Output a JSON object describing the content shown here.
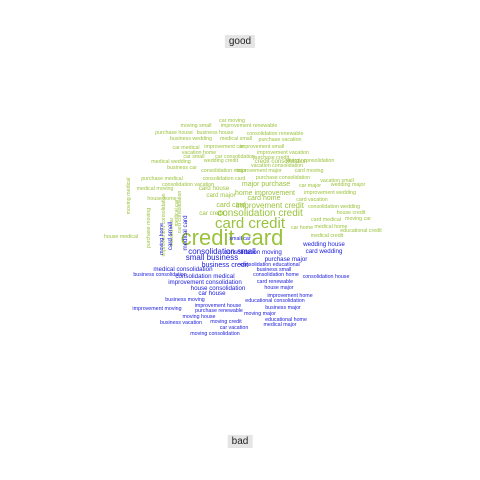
{
  "chart_data": {
    "type": "comparison-wordcloud",
    "groups": [
      "good",
      "bad"
    ],
    "colors": {
      "good": "#9ac23c",
      "bad": "#1a1adb"
    },
    "words": [
      {
        "text": "credit card",
        "group": "good",
        "weight": 22
      },
      {
        "text": "card credit",
        "group": "good",
        "weight": 14
      },
      {
        "text": "consolidation credit",
        "group": "good",
        "weight": 10
      },
      {
        "text": "improvement credit",
        "group": "good",
        "weight": 8
      },
      {
        "text": "card card",
        "group": "good",
        "weight": 7
      },
      {
        "text": "home improvement",
        "group": "good",
        "weight": 7
      },
      {
        "text": "major purchase",
        "group": "good",
        "weight": 7
      },
      {
        "text": "card home",
        "group": "good",
        "weight": 7
      },
      {
        "text": "card major",
        "group": "good",
        "weight": 6
      },
      {
        "text": "car credit",
        "group": "good",
        "weight": 6
      },
      {
        "text": "credit consolidation",
        "group": "good",
        "weight": 6
      },
      {
        "text": "card house",
        "group": "good",
        "weight": 6
      },
      {
        "text": "car moving",
        "group": "good",
        "weight": 5
      },
      {
        "text": "moving small",
        "group": "good",
        "weight": 5
      },
      {
        "text": "improvement renewable",
        "group": "good",
        "weight": 5
      },
      {
        "text": "purchase house",
        "group": "good",
        "weight": 5
      },
      {
        "text": "business house",
        "group": "good",
        "weight": 5
      },
      {
        "text": "consolidation renewable",
        "group": "good",
        "weight": 5
      },
      {
        "text": "business wedding",
        "group": "good",
        "weight": 5
      },
      {
        "text": "medical small",
        "group": "good",
        "weight": 5
      },
      {
        "text": "purchase vacation",
        "group": "good",
        "weight": 5
      },
      {
        "text": "car medical",
        "group": "good",
        "weight": 5
      },
      {
        "text": "improvement car",
        "group": "good",
        "weight": 5
      },
      {
        "text": "improvement small",
        "group": "good",
        "weight": 5
      },
      {
        "text": "vacation home",
        "group": "good",
        "weight": 5
      },
      {
        "text": "improvement vacation",
        "group": "good",
        "weight": 5
      },
      {
        "text": "car small",
        "group": "good",
        "weight": 5
      },
      {
        "text": "car consolidation",
        "group": "good",
        "weight": 5
      },
      {
        "text": "purchase credit",
        "group": "good",
        "weight": 5
      },
      {
        "text": "energy consolidation",
        "group": "good",
        "weight": 5
      },
      {
        "text": "medical wedding",
        "group": "good",
        "weight": 5
      },
      {
        "text": "wedding credit",
        "group": "good",
        "weight": 5
      },
      {
        "text": "vacation consolidation",
        "group": "good",
        "weight": 5
      },
      {
        "text": "business car",
        "group": "good",
        "weight": 5
      },
      {
        "text": "consolidation major",
        "group": "good",
        "weight": 5
      },
      {
        "text": "improvement major",
        "group": "good",
        "weight": 5
      },
      {
        "text": "card moving",
        "group": "good",
        "weight": 5
      },
      {
        "text": "purchase medical",
        "group": "good",
        "weight": 5
      },
      {
        "text": "consolidation card",
        "group": "good",
        "weight": 5
      },
      {
        "text": "purchase consolidation",
        "group": "good",
        "weight": 5
      },
      {
        "text": "vacation small",
        "group": "good",
        "weight": 5
      },
      {
        "text": "consolidation vacation",
        "group": "good",
        "weight": 5
      },
      {
        "text": "car major",
        "group": "good",
        "weight": 5
      },
      {
        "text": "wedding major",
        "group": "good",
        "weight": 5
      },
      {
        "text": "medical moving",
        "group": "good",
        "weight": 5
      },
      {
        "text": "improvement wedding",
        "group": "good",
        "weight": 5
      },
      {
        "text": "house home",
        "group": "good",
        "weight": 5
      },
      {
        "text": "card vacation",
        "group": "good",
        "weight": 5
      },
      {
        "text": "consolidation wedding",
        "group": "good",
        "weight": 5
      },
      {
        "text": "house credit",
        "group": "good",
        "weight": 5
      },
      {
        "text": "card medical",
        "group": "good",
        "weight": 5
      },
      {
        "text": "moving car",
        "group": "good",
        "weight": 5
      },
      {
        "text": "car home",
        "group": "good",
        "weight": 5
      },
      {
        "text": "medical home",
        "group": "good",
        "weight": 5
      },
      {
        "text": "educational credit",
        "group": "good",
        "weight": 5
      },
      {
        "text": "medical credit",
        "group": "good",
        "weight": 5
      },
      {
        "text": "house medical",
        "group": "good",
        "weight": 5
      },
      {
        "text": "moving medical",
        "group": "good",
        "weight": 5
      },
      {
        "text": "purchase moving",
        "group": "good",
        "weight": 5
      },
      {
        "text": "improvement consolidation",
        "group": "good",
        "weight": 5
      },
      {
        "text": "vacation car",
        "group": "good",
        "weight": 5
      },
      {
        "text": "medical car",
        "group": "good",
        "weight": 5
      },
      {
        "text": "card consolidation",
        "group": "good",
        "weight": 5
      },
      {
        "text": "consolidation small",
        "group": "bad",
        "weight": 9
      },
      {
        "text": "small business",
        "group": "bad",
        "weight": 8
      },
      {
        "text": "business credit",
        "group": "bad",
        "weight": 7
      },
      {
        "text": "medical consolidation",
        "group": "bad",
        "weight": 6
      },
      {
        "text": "consolidation medical",
        "group": "bad",
        "weight": 6
      },
      {
        "text": "improvement consolidation",
        "group": "bad",
        "weight": 6
      },
      {
        "text": "house consolidation",
        "group": "bad",
        "weight": 6
      },
      {
        "text": "car house",
        "group": "bad",
        "weight": 6
      },
      {
        "text": "consolidation moving",
        "group": "bad",
        "weight": 6
      },
      {
        "text": "card wedding",
        "group": "bad",
        "weight": 6
      },
      {
        "text": "wedding house",
        "group": "bad",
        "weight": 6
      },
      {
        "text": "purchase major",
        "group": "bad",
        "weight": 6
      },
      {
        "text": "consolidation educational",
        "group": "bad",
        "weight": 5
      },
      {
        "text": "business small",
        "group": "bad",
        "weight": 5
      },
      {
        "text": "consolidation home",
        "group": "bad",
        "weight": 5
      },
      {
        "text": "consolidation house",
        "group": "bad",
        "weight": 5
      },
      {
        "text": "card renewable",
        "group": "bad",
        "weight": 5
      },
      {
        "text": "business consolidation",
        "group": "bad",
        "weight": 5
      },
      {
        "text": "house major",
        "group": "bad",
        "weight": 5
      },
      {
        "text": "improvement home",
        "group": "bad",
        "weight": 5
      },
      {
        "text": "business moving",
        "group": "bad",
        "weight": 5
      },
      {
        "text": "educational consolidation",
        "group": "bad",
        "weight": 5
      },
      {
        "text": "improvement house",
        "group": "bad",
        "weight": 5
      },
      {
        "text": "improvement moving",
        "group": "bad",
        "weight": 5
      },
      {
        "text": "purchase renewable",
        "group": "bad",
        "weight": 5
      },
      {
        "text": "business major",
        "group": "bad",
        "weight": 5
      },
      {
        "text": "moving major",
        "group": "bad",
        "weight": 5
      },
      {
        "text": "moving house",
        "group": "bad",
        "weight": 5
      },
      {
        "text": "educational home",
        "group": "bad",
        "weight": 5
      },
      {
        "text": "business vacation",
        "group": "bad",
        "weight": 5
      },
      {
        "text": "moving credit",
        "group": "bad",
        "weight": 5
      },
      {
        "text": "medical major",
        "group": "bad",
        "weight": 5
      },
      {
        "text": "car vacation",
        "group": "bad",
        "weight": 5
      },
      {
        "text": "moving consolidation",
        "group": "bad",
        "weight": 5
      },
      {
        "text": "moving home",
        "group": "bad",
        "weight": 5
      },
      {
        "text": "card small",
        "group": "bad",
        "weight": 6
      },
      {
        "text": "medical card",
        "group": "bad",
        "weight": 6
      },
      {
        "text": "small car",
        "group": "bad",
        "weight": 5
      }
    ]
  }
}
